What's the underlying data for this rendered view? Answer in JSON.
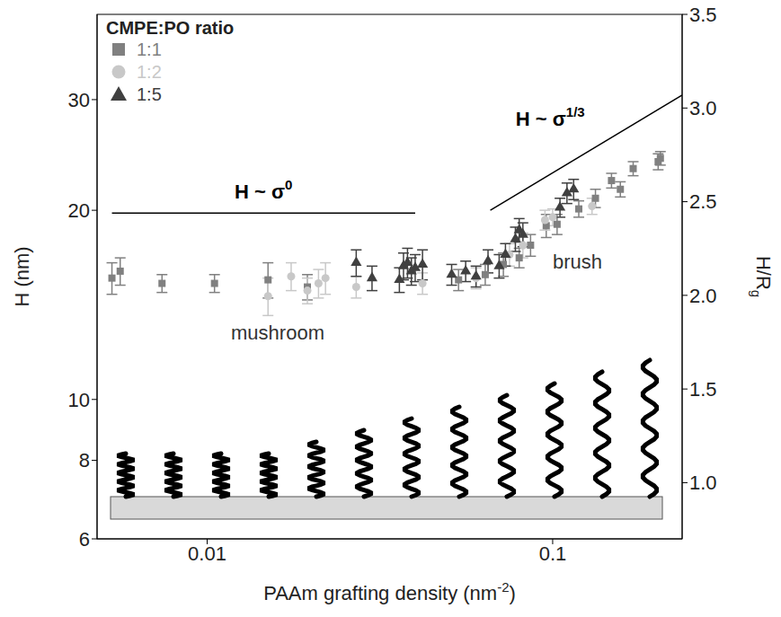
{
  "chart_data": {
    "type": "scatter",
    "log": true,
    "grid": false,
    "legend": "upper left",
    "legend_title": "CMPE:PO ratio",
    "x_label": {
      "text": "PAAm grafting density (nm",
      "sup": "-2",
      "after": ")"
    },
    "y_label": "H (nm)",
    "y2_label": {
      "text": "H/R",
      "sub": "g"
    },
    "xlim": [
      0.0048,
      0.237
    ],
    "xticks": [
      0.01,
      0.1
    ],
    "ylim": [
      6,
      41
    ],
    "yticks": [
      6,
      8,
      10,
      20,
      30
    ],
    "y2lim": [
      0.7,
      3.5
    ],
    "y2ticks": [
      {
        "value": 1,
        "label": "1.0"
      },
      {
        "value": 1.5,
        "label": "1.5"
      },
      {
        "value": 2,
        "label": "2.0"
      },
      {
        "value": 2.5,
        "label": "2.5"
      },
      {
        "value": 3,
        "label": "3.0"
      },
      {
        "value": 3.5,
        "label": "3.5"
      }
    ],
    "series": [
      {
        "name": "1:1",
        "color": "#808080",
        "marker": "square",
        "x": [
          0.0053,
          0.0056,
          0.0074,
          0.0105,
          0.015,
          0.0195,
          0.0534,
          0.0638,
          0.072,
          0.08,
          0.0863,
          0.0958,
          0.103,
          0.119,
          0.133,
          0.148,
          0.157,
          0.171,
          0.202,
          0.205
        ],
        "values": [
          15.6,
          16.0,
          15.3,
          15.3,
          15.5,
          15.1,
          15.5,
          15.8,
          16.4,
          16.8,
          17.6,
          18.9,
          19.0,
          20.1,
          20.9,
          22.3,
          21.6,
          23.3,
          23.9,
          24.2
        ],
        "errors": [
          0.9,
          0.8,
          0.5,
          0.5,
          1.0,
          0.7,
          0.6,
          0.6,
          0.7,
          0.6,
          0.7,
          0.8,
          0.7,
          0.6,
          0.7,
          0.6,
          0.6,
          0.6,
          0.7,
          0.6
        ]
      },
      {
        "name": "1:2",
        "color": "#c8c8c8",
        "marker": "circle",
        "x": [
          0.015,
          0.0175,
          0.0195,
          0.021,
          0.022,
          0.027,
          0.042,
          0.06,
          0.075,
          0.082,
          0.095,
          0.1,
          0.13
        ],
        "values": [
          14.6,
          15.7,
          14.9,
          15.3,
          15.6,
          15.1,
          15.3,
          15.6,
          17.0,
          17.6,
          19.3,
          19.5,
          20.3
        ],
        "errors": [
          1.0,
          0.8,
          0.7,
          0.8,
          0.9,
          0.6,
          0.6,
          0.6,
          0.7,
          0.8,
          0.7,
          0.6,
          0.6
        ]
      },
      {
        "name": "1:5",
        "color": "#404040",
        "marker": "triangle",
        "x": [
          0.027,
          0.03,
          0.036,
          0.037,
          0.038,
          0.039,
          0.04,
          0.042,
          0.051,
          0.056,
          0.06,
          0.065,
          0.07,
          0.073,
          0.078,
          0.08,
          0.082,
          0.105,
          0.11,
          0.115
        ],
        "values": [
          16.5,
          15.6,
          15.5,
          16.3,
          16.5,
          16.0,
          16.2,
          16.4,
          15.8,
          16.0,
          15.7,
          16.6,
          16.3,
          17.0,
          18.0,
          18.6,
          18.3,
          20.2,
          21.3,
          21.6
        ],
        "errors": [
          0.8,
          0.7,
          0.7,
          0.8,
          0.9,
          0.8,
          0.8,
          0.9,
          0.6,
          0.6,
          0.6,
          0.7,
          0.7,
          0.7,
          0.8,
          0.8,
          0.8,
          0.7,
          0.8,
          0.8
        ]
      }
    ],
    "guide_lines": [
      {
        "label": "H ~ σ",
        "exponent": "0",
        "x": [
          0.0053,
          0.04
        ],
        "values": [
          19.8,
          19.8
        ]
      },
      {
        "label": "H ~ σ",
        "exponent": "1/3",
        "x": [
          0.066,
          0.237
        ],
        "values": [
          20,
          30.5
        ]
      }
    ],
    "annotations": [
      {
        "text": "mushroom",
        "x": 0.016,
        "y": 12.8
      },
      {
        "text": "brush",
        "x": 0.118,
        "y": 16.6
      }
    ]
  }
}
